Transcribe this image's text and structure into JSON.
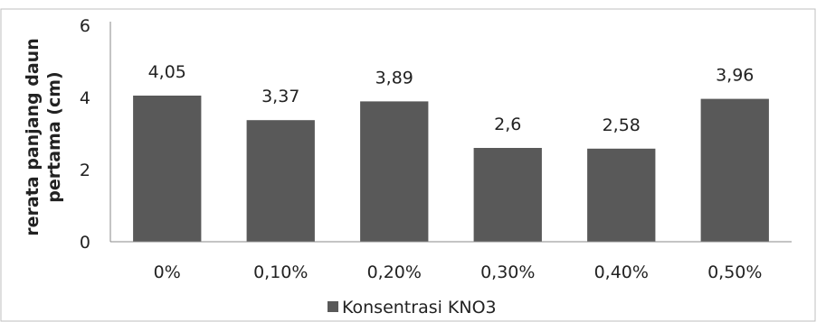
{
  "chart_data": {
    "type": "bar",
    "categories": [
      "0%",
      "0,10%",
      "0,20%",
      "0,30%",
      "0,40%",
      "0,50%"
    ],
    "series": [
      {
        "name": "Konsentrasi KNO3",
        "values": [
          4.05,
          3.37,
          3.89,
          2.6,
          2.58,
          3.96
        ],
        "labels": [
          "4,05",
          "3,37",
          "3,89",
          "2,6",
          "2,58",
          "3,96"
        ],
        "color": "#595959"
      }
    ],
    "ylabel_lines": [
      "rerata panjang daun",
      "pertama (cm)"
    ],
    "xlabel": "",
    "ylim": [
      0,
      6
    ],
    "yticks": [
      "0",
      "2",
      "4",
      "6"
    ],
    "grid": false,
    "legend_position": "bottom",
    "frame_color": "#bfbfbf"
  }
}
